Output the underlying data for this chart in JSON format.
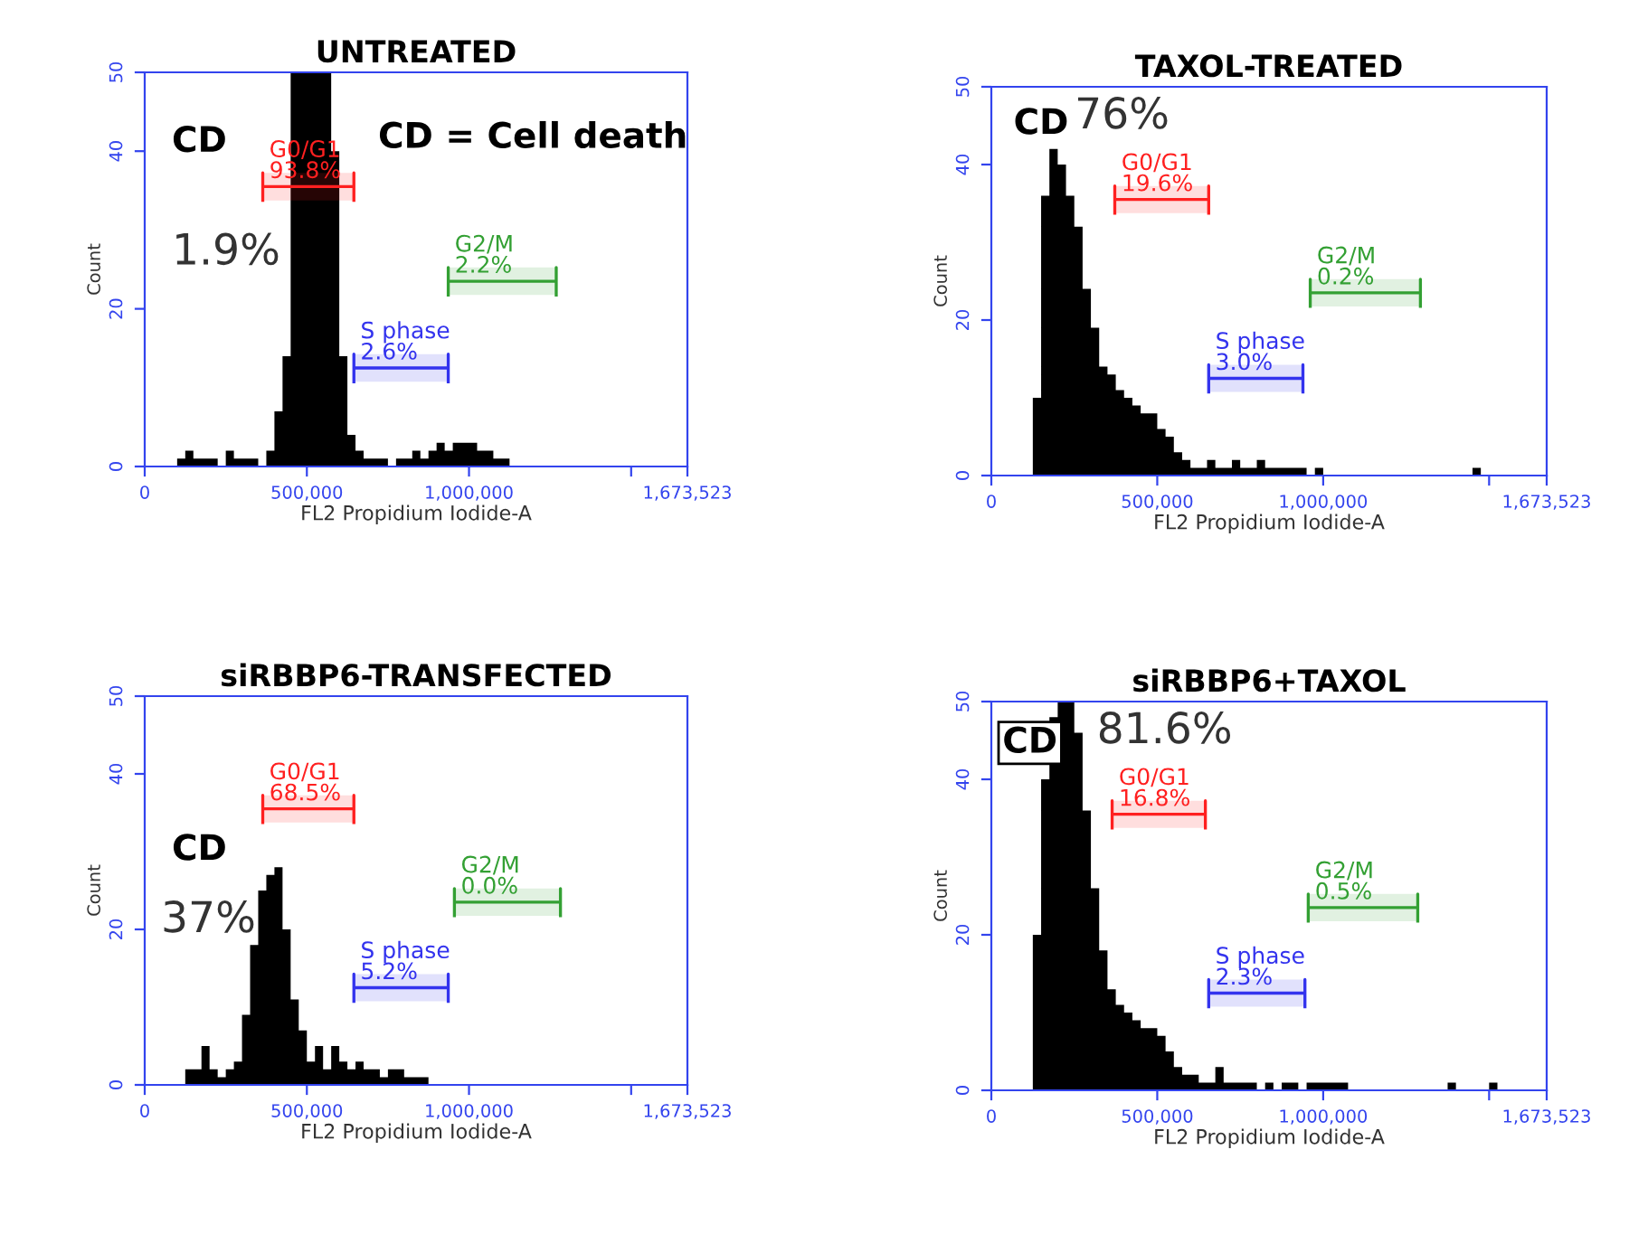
{
  "chart_data": [
    {
      "type": "histogram",
      "title": "UNTREATED",
      "xlabel": "FL2 Propidium Iodide-A",
      "ylabel": "Count",
      "color": "#000000",
      "bins": [
        100000,
        125000,
        150000,
        175000,
        200000,
        225000,
        250000,
        275000,
        300000,
        325000,
        350000,
        375000,
        400000,
        425000,
        450000,
        475000,
        500000,
        525000,
        550000,
        575000,
        600000,
        625000,
        650000,
        675000,
        700000,
        725000,
        750000,
        775000,
        800000,
        825000,
        850000,
        875000,
        900000,
        925000,
        950000,
        975000,
        1000000,
        1025000,
        1050000,
        1075000,
        1100000,
        1125000
      ],
      "values": [
        1,
        2,
        1,
        1,
        1,
        0,
        2,
        1,
        1,
        1,
        0,
        2,
        7,
        14,
        50,
        50,
        50,
        50,
        50,
        40,
        14,
        4,
        2,
        1,
        1,
        1,
        0,
        1,
        1,
        2,
        1,
        2,
        3,
        2,
        3,
        3,
        3,
        2,
        2,
        1,
        1
      ],
      "xlim": [
        0,
        1673523
      ],
      "ylim": [
        0,
        50
      ],
      "xticks": [
        0,
        {
          "value": 500000,
          "label": "500,000"
        },
        {
          "value": 1000000,
          "label": "1,000,000"
        },
        {
          "value": 1500000,
          "label": null
        },
        {
          "value": 1673523,
          "label": "1,673,523"
        }
      ],
      "yticks": [
        0,
        20,
        40,
        50
      ],
      "bands": [
        {
          "axis": "x",
          "from": 364000,
          "to": 645000,
          "label": "G0/G1\n93.8%",
          "color": "#ff2020"
        },
        {
          "axis": "x",
          "from": 645000,
          "to": 936000,
          "label": "S phase\n2.6%",
          "color": "#3333ee"
        },
        {
          "axis": "x",
          "from": 936000,
          "to": 1269000,
          "label": "G2/M\n2.2%",
          "color": "#33a033"
        }
      ],
      "annotations": [
        "CD",
        "1.9%",
        "CD = Cell death"
      ]
    },
    {
      "type": "histogram",
      "title": "TAXOL-TREATED",
      "xlabel": "FL2 Propidium Iodide-A",
      "ylabel": "Count",
      "color": "#000000",
      "bins": [
        125000,
        150000,
        175000,
        200000,
        225000,
        250000,
        275000,
        300000,
        325000,
        350000,
        375000,
        400000,
        425000,
        450000,
        475000,
        500000,
        525000,
        550000,
        575000,
        600000,
        625000,
        650000,
        675000,
        700000,
        725000,
        750000,
        775000,
        800000,
        825000,
        850000,
        875000,
        900000,
        925000,
        950000,
        975000,
        1000000,
        1450000,
        1475000
      ],
      "values": [
        10,
        36,
        42,
        40,
        36,
        32,
        24,
        19,
        14,
        13,
        11,
        10,
        9,
        8,
        8,
        6,
        5,
        3,
        2,
        1,
        1,
        2,
        1,
        1,
        2,
        1,
        1,
        2,
        1,
        1,
        1,
        1,
        1,
        0,
        1,
        0,
        1
      ],
      "xlim": [
        0,
        1673523
      ],
      "ylim": [
        0,
        50
      ],
      "xticks": [
        0,
        {
          "value": 500000,
          "label": "500,000"
        },
        {
          "value": 1000000,
          "label": "1,000,000"
        },
        {
          "value": 1500000,
          "label": null
        },
        {
          "value": 1673523,
          "label": "1,673,523"
        }
      ],
      "yticks": [
        0,
        20,
        40,
        50
      ],
      "bands": [
        {
          "axis": "x",
          "from": 372000,
          "to": 655000,
          "label": "G0/G1\n19.6%",
          "color": "#ff2020"
        },
        {
          "axis": "x",
          "from": 655000,
          "to": 939000,
          "label": "S phase\n3.0%",
          "color": "#3333ee"
        },
        {
          "axis": "x",
          "from": 961000,
          "to": 1293000,
          "label": "G2/M\n0.2%",
          "color": "#33a033"
        }
      ],
      "annotations": [
        "CD",
        "76%"
      ]
    },
    {
      "type": "histogram",
      "title": "siRBBP6-TRANSFECTED",
      "xlabel": "FL2 Propidium Iodide-A",
      "ylabel": "Count",
      "color": "#000000",
      "bins": [
        125000,
        150000,
        175000,
        200000,
        225000,
        250000,
        275000,
        300000,
        325000,
        350000,
        375000,
        400000,
        425000,
        450000,
        475000,
        500000,
        525000,
        550000,
        575000,
        600000,
        625000,
        650000,
        675000,
        700000,
        725000,
        750000,
        775000,
        800000,
        825000,
        850000,
        875000
      ],
      "values": [
        2,
        2,
        5,
        2,
        1,
        2,
        3,
        9,
        18,
        25,
        27,
        28,
        20,
        11,
        7,
        3,
        5,
        2,
        5,
        3,
        2,
        3,
        2,
        2,
        1,
        2,
        2,
        1,
        1,
        1
      ],
      "xlim": [
        0,
        1673523
      ],
      "ylim": [
        0,
        50
      ],
      "xticks": [
        0,
        {
          "value": 500000,
          "label": "500,000"
        },
        {
          "value": 1000000,
          "label": "1,000,000"
        },
        {
          "value": 1500000,
          "label": null
        },
        {
          "value": 1673523,
          "label": "1,673,523"
        }
      ],
      "yticks": [
        0,
        20,
        40,
        50
      ],
      "bands": [
        {
          "axis": "x",
          "from": 364000,
          "to": 645000,
          "label": "G0/G1\n68.5%",
          "color": "#ff2020"
        },
        {
          "axis": "x",
          "from": 645000,
          "to": 936000,
          "label": "S phase\n5.2%",
          "color": "#3333ee"
        },
        {
          "axis": "x",
          "from": 955000,
          "to": 1282000,
          "label": "G2/M\n0.0%",
          "color": "#33a033"
        }
      ],
      "annotations": [
        "CD",
        "37%"
      ]
    },
    {
      "type": "histogram",
      "title": "siRBBP6+TAXOL",
      "xlabel": "FL2 Propidium Iodide-A",
      "ylabel": "Count",
      "color": "#000000",
      "bins": [
        125000,
        150000,
        175000,
        200000,
        225000,
        250000,
        275000,
        300000,
        325000,
        350000,
        375000,
        400000,
        425000,
        450000,
        475000,
        500000,
        525000,
        550000,
        575000,
        600000,
        625000,
        650000,
        675000,
        700000,
        725000,
        750000,
        775000,
        800000,
        825000,
        850000,
        875000,
        900000,
        925000,
        950000,
        975000,
        1000000,
        1025000,
        1050000,
        1075000,
        1375000,
        1400000,
        1500000,
        1525000
      ],
      "values": [
        20,
        40,
        48,
        50,
        50,
        46,
        36,
        26,
        18,
        13,
        11,
        10,
        9,
        8,
        8,
        7,
        5,
        3,
        2,
        2,
        1,
        1,
        3,
        1,
        1,
        1,
        1,
        0,
        1,
        0,
        1,
        1,
        0,
        1,
        1,
        1,
        1,
        1,
        0,
        1,
        0,
        1
      ],
      "xlim": [
        0,
        1673523
      ],
      "ylim": [
        0,
        50
      ],
      "xticks": [
        0,
        {
          "value": 500000,
          "label": "500,000"
        },
        {
          "value": 1000000,
          "label": "1,000,000"
        },
        {
          "value": 1500000,
          "label": null
        },
        {
          "value": 1673523,
          "label": "1,673,523"
        }
      ],
      "yticks": [
        0,
        20,
        40,
        50
      ],
      "bands": [
        {
          "axis": "x",
          "from": 364000,
          "to": 645000,
          "label": "G0/G1\n16.8%",
          "color": "#ff2020"
        },
        {
          "axis": "x",
          "from": 655000,
          "to": 945000,
          "label": "S phase\n2.3%",
          "color": "#3333ee"
        },
        {
          "axis": "x",
          "from": 955000,
          "to": 1285000,
          "label": "G2/M\n0.5%",
          "color": "#33a033"
        }
      ],
      "annotations": [
        "CD",
        "81.6%"
      ]
    }
  ]
}
